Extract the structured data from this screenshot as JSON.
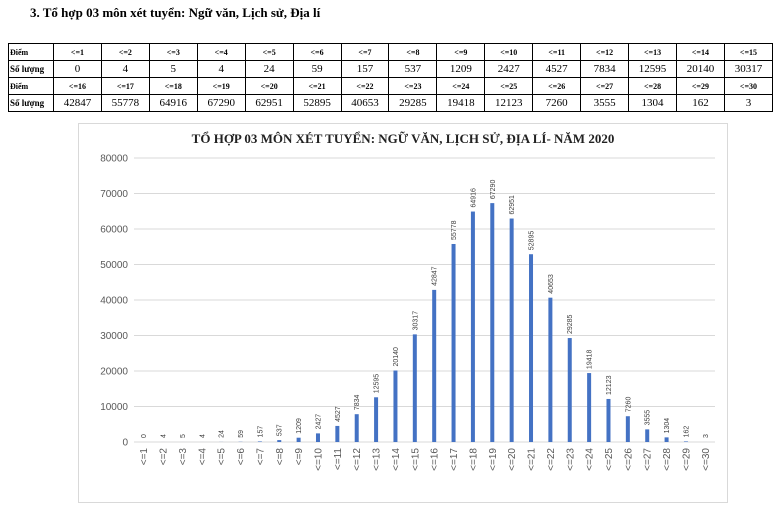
{
  "heading": "3.  Tổ hợp 03 môn xét tuyển: Ngữ văn, Lịch sử, Địa lí",
  "table": {
    "row_labels": {
      "score": "Điểm",
      "count": "Số lượng"
    },
    "part1": {
      "scores": [
        "<=1",
        "<=2",
        "<=3",
        "<=4",
        "<=5",
        "<=6",
        "<=7",
        "<=8",
        "<=9",
        "<=10",
        "<=11",
        "<=12",
        "<=13",
        "<=14",
        "<=15"
      ],
      "counts": [
        "0",
        "4",
        "5",
        "4",
        "24",
        "59",
        "157",
        "537",
        "1209",
        "2427",
        "4527",
        "7834",
        "12595",
        "20140",
        "30317"
      ]
    },
    "part2": {
      "scores": [
        "<=16",
        "<=17",
        "<=18",
        "<=19",
        "<=20",
        "<=21",
        "<=22",
        "<=23",
        "<=24",
        "<=25",
        "<=26",
        "<=27",
        "<=28",
        "<=29",
        "<=30"
      ],
      "counts": [
        "42847",
        "55778",
        "64916",
        "67290",
        "62951",
        "52895",
        "40653",
        "29285",
        "19418",
        "12123",
        "7260",
        "3555",
        "1304",
        "162",
        "3"
      ]
    }
  },
  "chart_data": {
    "type": "bar",
    "title": "TỔ HỢP 03 MÔN XÉT TUYỂN: NGỮ VĂN, LỊCH SỬ, ĐỊA LÍ- NĂM 2020",
    "categories": [
      "<=1",
      "<=2",
      "<=3",
      "<=4",
      "<=5",
      "<=6",
      "<=7",
      "<=8",
      "<=9",
      "<=10",
      "<=11",
      "<=12",
      "<=13",
      "<=14",
      "<=15",
      "<=16",
      "<=17",
      "<=18",
      "<=19",
      "<=20",
      "<=21",
      "<=22",
      "<=23",
      "<=24",
      "<=25",
      "<=26",
      "<=27",
      "<=28",
      "<=29",
      "<=30"
    ],
    "values": [
      0,
      4,
      5,
      4,
      24,
      59,
      157,
      537,
      1209,
      2427,
      4527,
      7834,
      12595,
      20140,
      30317,
      42847,
      55778,
      64916,
      67290,
      62951,
      52895,
      40653,
      29285,
      19418,
      12123,
      7260,
      3555,
      1304,
      162,
      3
    ],
    "ylim": [
      0,
      80000
    ],
    "yticks": [
      0,
      10000,
      20000,
      30000,
      40000,
      50000,
      60000,
      70000,
      80000
    ],
    "grid": true,
    "bar_color": "#4472c4",
    "xlabel": "",
    "ylabel": ""
  }
}
